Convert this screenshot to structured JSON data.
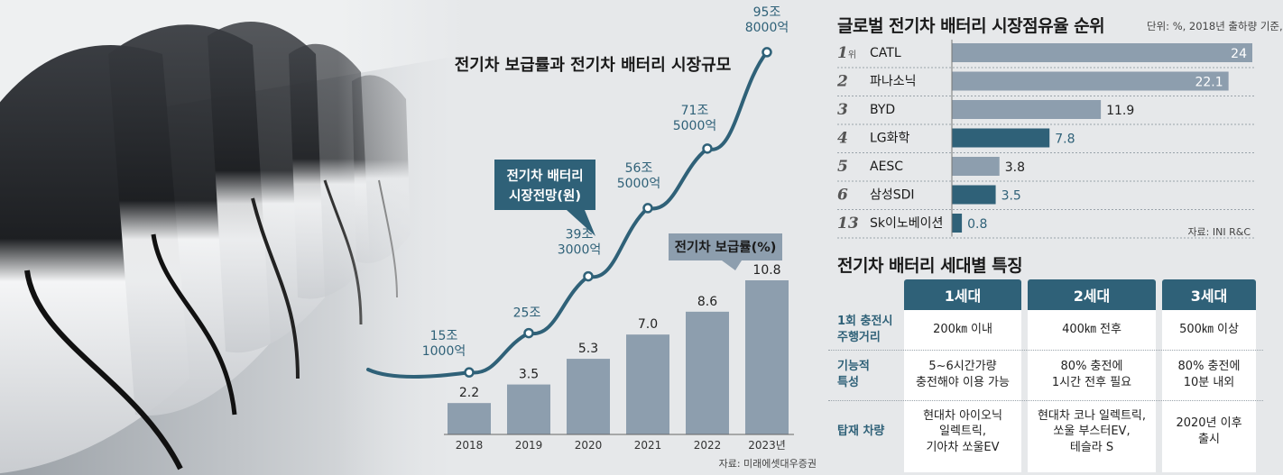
{
  "chart_data": [
    {
      "type": "bar+line",
      "title": "전기차 보급률과 전기차 배터리 시장규모",
      "categories": [
        "2018",
        "2019",
        "2020",
        "2021",
        "2022",
        "2023년"
      ],
      "series": [
        {
          "name": "전기차 보급률(%)",
          "type": "bar",
          "values": [
            2.2,
            3.5,
            5.3,
            7.0,
            8.6,
            10.8
          ],
          "labels": [
            "2.2",
            "3.5",
            "5.3",
            "7.0",
            "8.6",
            "10.8"
          ]
        },
        {
          "name": "전기차 배터리 시장전망(원)",
          "type": "line",
          "values": [
            151000,
            250000,
            393000,
            565000,
            715000,
            958000
          ],
          "labels": [
            [
              "15조",
              "1000억"
            ],
            [
              "25조"
            ],
            [
              "39조",
              "3000억"
            ],
            [
              "56조",
              "5000억"
            ],
            [
              "71조",
              "5000억"
            ],
            [
              "95조",
              "8000억"
            ]
          ]
        }
      ],
      "callouts": {
        "line": [
          "전기차 배터리",
          "시장전망(원)"
        ],
        "bar": "전기차 보급률(%)"
      },
      "source": "자료: 미래에셋대우증권",
      "colors": {
        "bar": "#8d9eae",
        "line": "#2f6178",
        "callout": "#2f6178",
        "callout_bar": "#8d9eae"
      }
    },
    {
      "type": "bar",
      "orientation": "horizontal",
      "title": "글로벌 전기차 배터리 시장점유율 순위",
      "subtitle": "단위: %, 2018년 출하량 기준,",
      "ranks": [
        "1",
        "2",
        "3",
        "4",
        "5",
        "6",
        "13"
      ],
      "rank_suffix_first": "위",
      "categories": [
        "CATL",
        "파나소닉",
        "BYD",
        "LG화학",
        "AESC",
        "삼성SDI",
        "Sk이노베이션"
      ],
      "values": [
        24,
        22.1,
        11.9,
        7.8,
        3.8,
        3.5,
        0.8
      ],
      "labels": [
        "24",
        "22.1",
        "11.9",
        "7.8",
        "3.8",
        "3.5",
        "0.8"
      ],
      "highlight": [
        "LG화학",
        "삼성SDI",
        "Sk이노베이션"
      ],
      "xlim": [
        0,
        24
      ],
      "source": "자료: INI R&C",
      "colors": {
        "bar": "#8d9eae",
        "highlight": "#2f6178"
      }
    }
  ],
  "generations": {
    "title": "전기차 배터리 세대별 특징",
    "columns": [
      "1세대",
      "2세대",
      "3세대"
    ],
    "rows": [
      {
        "label": [
          "1회 충전시",
          "주행거리"
        ],
        "cells": [
          [
            "200㎞ 이내"
          ],
          [
            "400㎞ 전후"
          ],
          [
            "500㎞ 이상"
          ]
        ]
      },
      {
        "label": [
          "기능적",
          "특성"
        ],
        "cells": [
          [
            "5~6시간가량",
            "충전해야 이용 가능"
          ],
          [
            "80% 충전에",
            "1시간 전후 필요"
          ],
          [
            "80% 충전에",
            "10분 내외"
          ]
        ]
      },
      {
        "label": [
          "탑재 차량"
        ],
        "cells": [
          [
            "현대차 아이오닉",
            "일렉트릭,",
            "기아차 쏘울EV"
          ],
          [
            "현대차 코나 일렉트릭,",
            "쏘울 부스터EV,",
            "테슬라 S"
          ],
          [
            "2020년 이후",
            "출시"
          ]
        ]
      }
    ]
  }
}
